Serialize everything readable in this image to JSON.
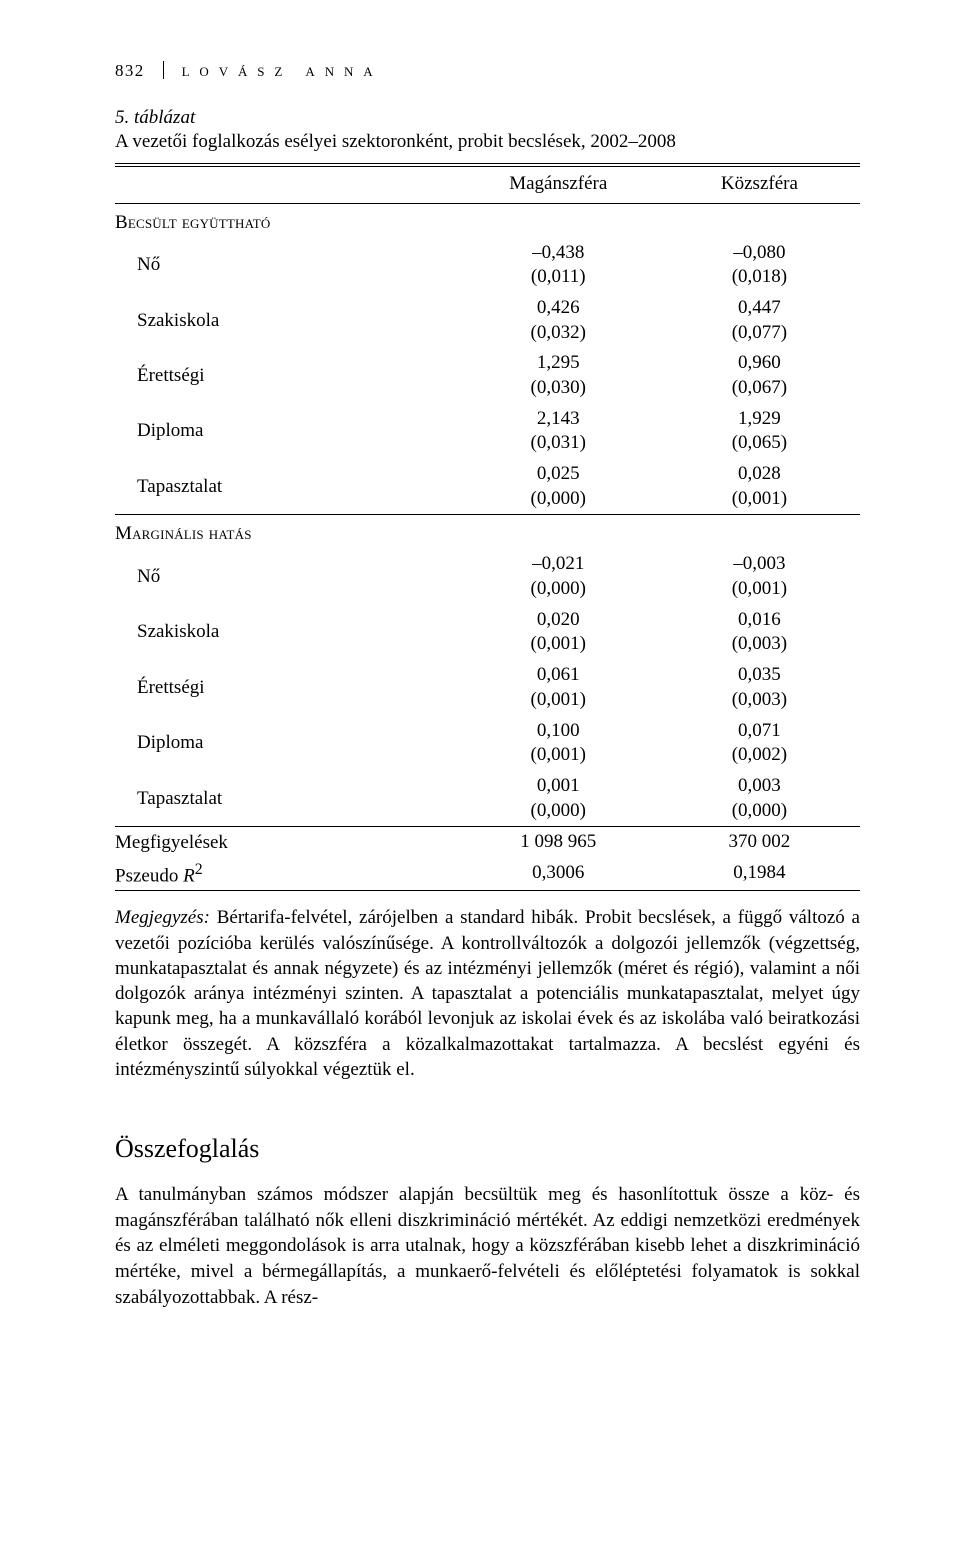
{
  "page": {
    "number": "832",
    "author": "lovász anna"
  },
  "table": {
    "caption": "5. táblázat",
    "title": "A vezetői foglalkozás esélyei szektoronként, probit becslések, 2002–2008",
    "columns": {
      "c1": "Magánszféra",
      "c2": "Közszféra"
    },
    "section1": "Becsült együttható",
    "rows1": {
      "no": {
        "label": "Nő",
        "c1": "–0,438\n(0,011)",
        "c2": "–0,080\n(0,018)"
      },
      "szak": {
        "label": "Szakiskola",
        "c1": "0,426\n(0,032)",
        "c2": "0,447\n(0,077)"
      },
      "eret": {
        "label": "Érettségi",
        "c1": "1,295\n(0,030)",
        "c2": "0,960\n(0,067)"
      },
      "dipl": {
        "label": "Diploma",
        "c1": "2,143\n(0,031)",
        "c2": "1,929\n(0,065)"
      },
      "tap": {
        "label": "Tapasztalat",
        "c1": "0,025\n(0,000)",
        "c2": "0,028\n(0,001)"
      }
    },
    "section2": "Marginális hatás",
    "rows2": {
      "no": {
        "label": "Nő",
        "c1": "–0,021\n(0,000)",
        "c2": "–0,003\n(0,001)"
      },
      "szak": {
        "label": "Szakiskola",
        "c1": "0,020\n(0,001)",
        "c2": "0,016\n(0,003)"
      },
      "eret": {
        "label": "Érettségi",
        "c1": "0,061\n(0,001)",
        "c2": "0,035\n(0,003)"
      },
      "dipl": {
        "label": "Diploma",
        "c1": "0,100\n(0,001)",
        "c2": "0,071\n(0,002)"
      },
      "tap": {
        "label": "Tapasztalat",
        "c1": "0,001\n(0,000)",
        "c2": "0,003\n(0,000)"
      }
    },
    "stats": {
      "obs": {
        "label": "Megfigyelések",
        "c1": "1 098 965",
        "c2": "370 002"
      },
      "pr": {
        "label_pre": "Pszeudo ",
        "label_var": "R",
        "label_sup": "2",
        "c1": "0,3006",
        "c2": "0,1984"
      }
    },
    "note": {
      "lead": "Megjegyzés:",
      "text": " Bértarifa-felvétel, zárójelben a standard hibák. Probit becslések, a függő változó a vezetői pozícióba kerülés valószínűsége. A kontrollváltozók a dolgozói jellemzők (végzettség, munkatapasztalat és annak négyzete) és az intézményi jellemzők (méret és régió), valamint a női dolgozók aránya intézményi szinten. A tapasztalat a potenciális munkatapasztalat, melyet úgy kapunk meg, ha a munkavállaló korából levonjuk az iskolai évek és az iskolába való beiratkozási életkor összegét. A közszféra a közalkalmazottakat tartalmazza. A becslést egyéni és intézményszintű súlyokkal végeztük el."
    }
  },
  "section": {
    "heading": "Összefoglalás",
    "body": "A tanulmányban számos módszer alapján becsültük meg és hasonlítottuk össze a köz- és magánszférában található nők elleni diszkrimináció mértékét. Az eddigi nemzetközi eredmények és az elméleti meggondolások is arra utalnak, hogy a közszférában kisebb lehet a diszkrimináció mértéke, mivel a bérmegállapítás, a munkaerő-felvételi és előléptetési folyamatok is sokkal szabályozottabbak. A rész-"
  }
}
